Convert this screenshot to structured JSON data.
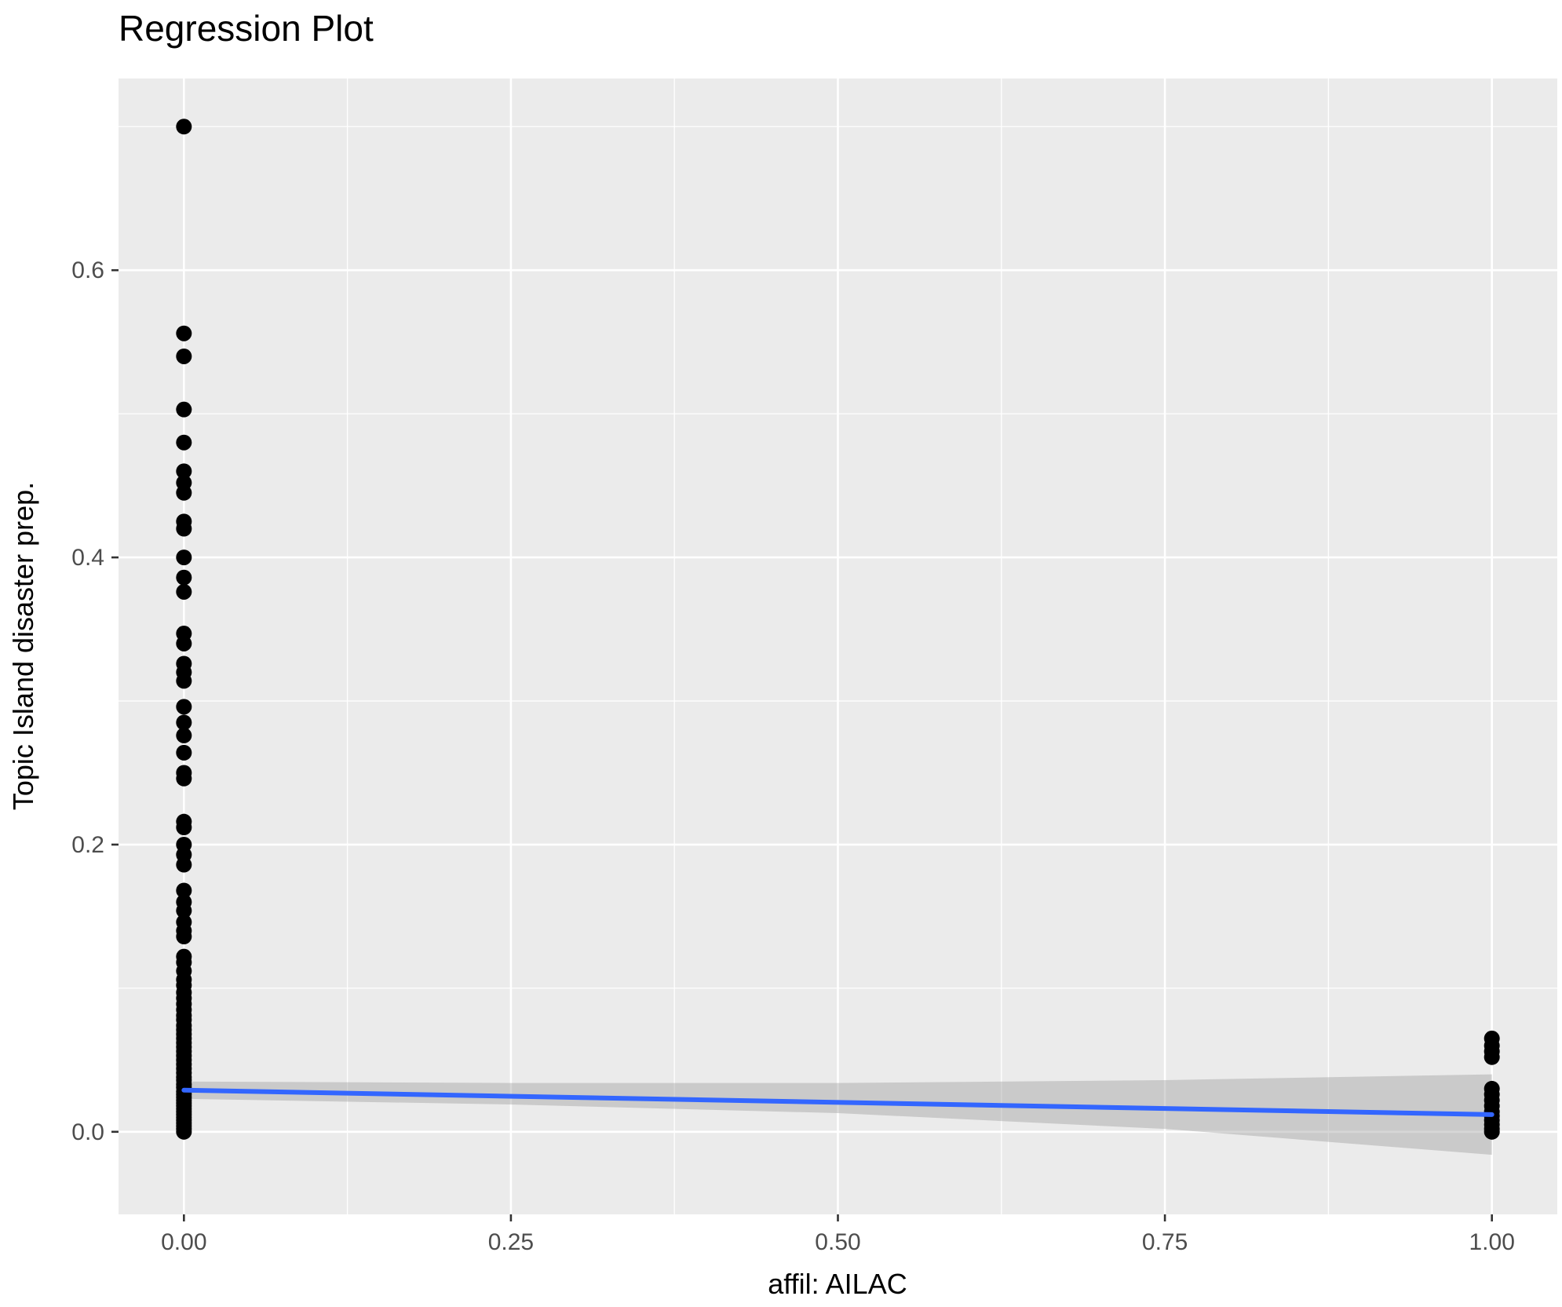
{
  "chart_data": {
    "type": "scatter",
    "title": "Regression Plot",
    "xlabel": "affil: AILAC",
    "ylabel": "Topic Island disaster prep.",
    "xlim": [
      -0.05,
      1.05
    ],
    "ylim": [
      -0.0575,
      0.7335
    ],
    "grid": true,
    "legend_position": "none",
    "panel_background": "#EBEBEB",
    "gridline_color": "#FFFFFF",
    "point_color": "#000000",
    "x_ticks": [
      {
        "value": 0.0,
        "label": "0.00"
      },
      {
        "value": 0.25,
        "label": "0.25"
      },
      {
        "value": 0.5,
        "label": "0.50"
      },
      {
        "value": 0.75,
        "label": "0.75"
      },
      {
        "value": 1.0,
        "label": "1.00"
      }
    ],
    "y_ticks": [
      {
        "value": 0.0,
        "label": "0.0"
      },
      {
        "value": 0.2,
        "label": "0.2"
      },
      {
        "value": 0.4,
        "label": "0.4"
      },
      {
        "value": 0.6,
        "label": "0.6"
      }
    ],
    "x_minor_ticks": [
      0.125,
      0.375,
      0.625,
      0.875
    ],
    "y_minor_ticks": [
      0.1,
      0.3,
      0.5,
      0.7
    ],
    "series": [
      {
        "name": "observations",
        "groups": [
          {
            "x": 0,
            "ys": [
              0.7,
              0.556,
              0.54,
              0.503,
              0.48,
              0.46,
              0.452,
              0.445,
              0.425,
              0.42,
              0.4,
              0.386,
              0.376,
              0.347,
              0.34,
              0.326,
              0.32,
              0.314,
              0.296,
              0.285,
              0.276,
              0.264,
              0.25,
              0.246,
              0.216,
              0.212,
              0.2,
              0.193,
              0.186,
              0.168,
              0.16,
              0.154,
              0.146,
              0.14,
              0.136,
              0.122,
              0.118,
              0.112,
              0.106,
              0.102,
              0.097,
              0.093,
              0.089,
              0.085,
              0.081,
              0.078,
              0.074,
              0.071,
              0.068,
              0.065,
              0.062,
              0.059,
              0.056,
              0.053,
              0.05,
              0.047,
              0.044,
              0.041,
              0.038,
              0.036,
              0.033,
              0.031,
              0.028,
              0.026,
              0.024,
              0.022,
              0.02,
              0.018,
              0.016,
              0.014,
              0.012,
              0.01,
              0.008,
              0.006,
              0.004,
              0.002,
              0.0
            ]
          },
          {
            "x": 1,
            "ys": [
              0.065,
              0.06,
              0.056,
              0.052,
              0.03,
              0.026,
              0.022,
              0.018,
              0.014,
              0.011,
              0.008,
              0.005,
              0.002,
              0.0
            ]
          }
        ]
      }
    ],
    "regression_line": {
      "color": "#3366FF",
      "x": [
        0,
        1
      ],
      "y": [
        0.029,
        0.012
      ]
    },
    "confidence_band": {
      "color": "#999999",
      "opacity": 0.4,
      "x": [
        0.0,
        0.25,
        0.5,
        0.75,
        1.0
      ],
      "upper": [
        0.035,
        0.034,
        0.034,
        0.036,
        0.04
      ],
      "lower": [
        0.023,
        0.019,
        0.013,
        0.002,
        -0.016
      ]
    }
  }
}
